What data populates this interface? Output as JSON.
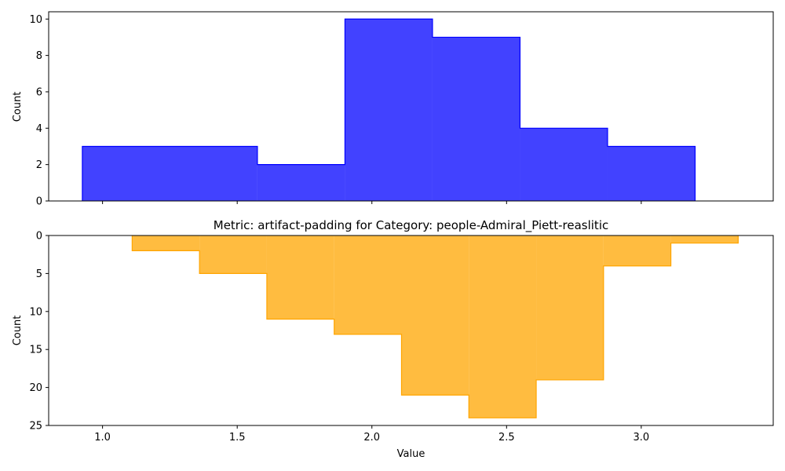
{
  "chart_data": [
    {
      "type": "histogram",
      "title": "",
      "xlabel": "",
      "ylabel": "Count",
      "ylim": [
        0,
        10.4
      ],
      "yticks": [
        0,
        2,
        4,
        6,
        8,
        10
      ],
      "bin_edges": [
        0.925,
        1.575,
        1.9,
        2.225,
        2.55,
        2.875,
        3.2
      ],
      "counts": [
        3,
        2,
        10,
        9,
        4,
        3
      ],
      "fill_color": "#0000ff",
      "fill_opacity": 0.74,
      "edge_color": "#0000ff"
    },
    {
      "type": "histogram",
      "title": "Metric: artifact-padding for Category: people-Admiral_Piett-reaslitic",
      "xlabel": "Value",
      "ylabel": "Count",
      "ylim": [
        0,
        25
      ],
      "y_inverted": true,
      "yticks": [
        0,
        5,
        10,
        15,
        20,
        25
      ],
      "bin_edges": [
        1.11,
        1.36,
        1.61,
        1.86,
        2.11,
        2.36,
        2.61,
        2.86,
        3.11,
        3.36
      ],
      "counts": [
        2,
        5,
        11,
        13,
        21,
        24,
        19,
        4,
        1
      ],
      "fill_color": "#ffa500",
      "fill_opacity": 0.75,
      "edge_color": "#ffa500"
    }
  ],
  "shared_x": {
    "xlim": [
      0.8,
      3.49
    ],
    "xticks": [
      "1.0",
      "1.5",
      "2.0",
      "2.5",
      "3.0"
    ]
  }
}
